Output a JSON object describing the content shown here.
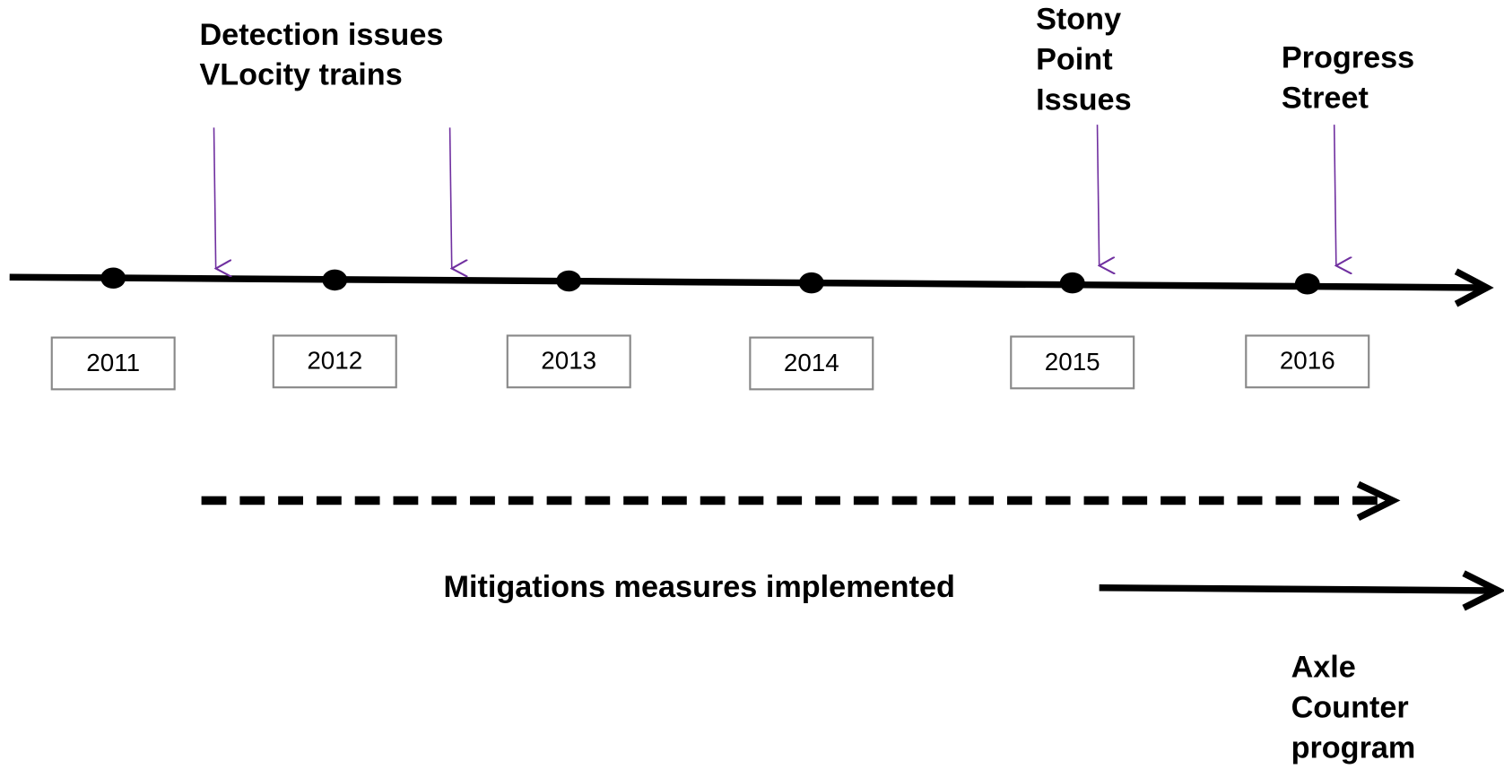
{
  "years": [
    "2011",
    "2012",
    "2013",
    "2014",
    "2015",
    "2016"
  ],
  "events": [
    {
      "lines": [
        "Detection issues",
        "VLocity trains"
      ]
    },
    {
      "lines": [
        "Stony",
        "Point",
        "Issues"
      ]
    },
    {
      "lines": [
        "Progress",
        "Street"
      ]
    }
  ],
  "mitigation": "Mitigations measures implemented",
  "axle_counter": {
    "lines": [
      "Axle",
      "Counter",
      "program"
    ]
  }
}
